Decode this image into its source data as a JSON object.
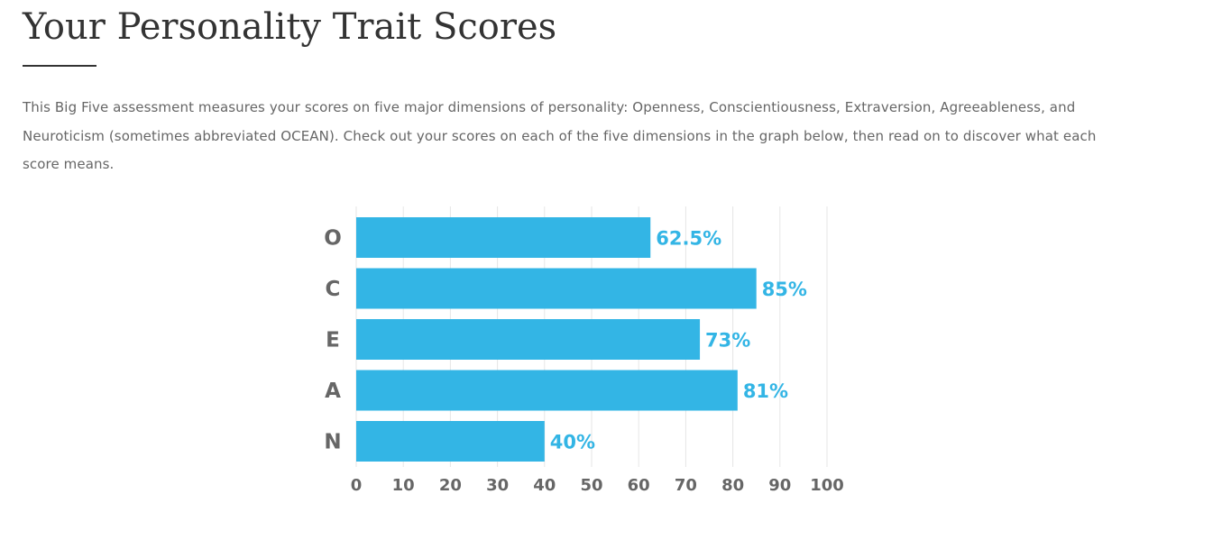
{
  "heading": {
    "title": "Your Personality Trait Scores"
  },
  "intro": {
    "text": "This Big Five assessment measures your scores on five major dimensions of personality: Openness, Conscientiousness, Extraversion, Agreeableness, and Neuroticism (sometimes abbreviated OCEAN). Check out your scores on each of the five dimensions in the graph below, then read on to discover what each score means."
  },
  "colors": {
    "bar": "#33b5e5",
    "value_label": "#33b5e5",
    "axis_text": "#666666",
    "heading": "#333333",
    "body_text": "#666666",
    "grid": "#e6e6e6"
  },
  "chart_data": {
    "type": "bar",
    "orientation": "horizontal",
    "categories": [
      "O",
      "C",
      "E",
      "A",
      "N"
    ],
    "values": [
      62.5,
      85,
      73,
      81,
      40
    ],
    "value_labels": [
      "62.5%",
      "85%",
      "73%",
      "81%",
      "40%"
    ],
    "xlim": [
      0,
      100
    ],
    "xticks": [
      0,
      10,
      20,
      30,
      40,
      50,
      60,
      70,
      80,
      90,
      100
    ],
    "grid": "vertical",
    "legend": "none",
    "title": "",
    "xlabel": "",
    "ylabel": ""
  }
}
